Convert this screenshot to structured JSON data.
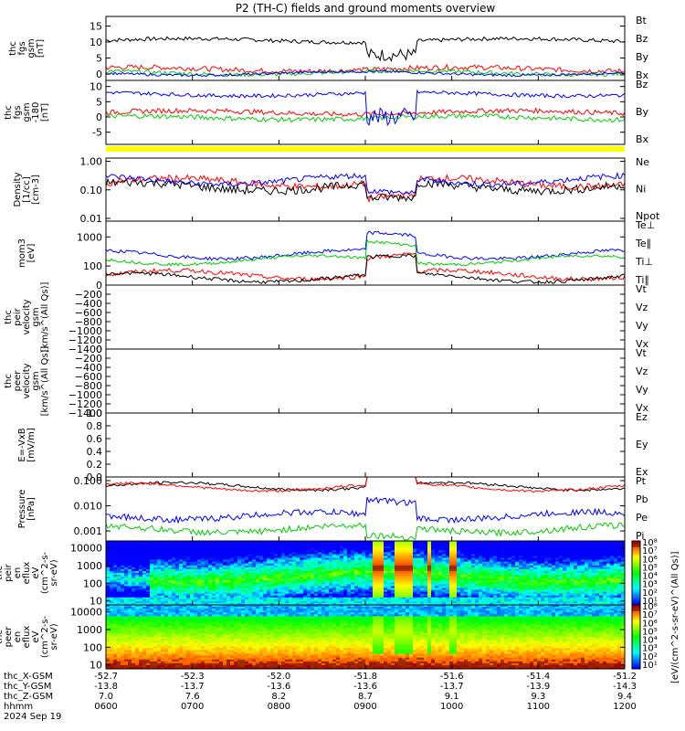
{
  "title": "P2 (TH-C) fields and ground moments overview",
  "colors": {
    "black": "#000000",
    "red": "#ff0000",
    "green": "#00cc00",
    "blue": "#0000ff",
    "yellow": "#ffff00"
  },
  "chart_data": [
    {
      "type": "line",
      "id": "p1",
      "ylabel": [
        "thc",
        "fgs",
        "gsm",
        "[nT]"
      ],
      "ylim": [
        -2,
        18
      ],
      "yticks": [
        0,
        5,
        10,
        15
      ],
      "log": false,
      "series": [
        {
          "name": "Bt",
          "color": "#000000",
          "base": 10.5,
          "amp": 0.6
        },
        {
          "name": "Bz",
          "color": "#ff0000",
          "base": 1.5,
          "amp": 0.8
        },
        {
          "name": "By",
          "color": "#00cc00",
          "base": 0.4,
          "amp": 0.6
        },
        {
          "name": "Bx",
          "color": "#0000ff",
          "base": 0.2,
          "amp": 0.4
        }
      ]
    },
    {
      "type": "line",
      "id": "p2",
      "ylabel": [
        "thc",
        "fgs",
        "gsm",
        "-180",
        "[nT]"
      ],
      "ylim": [
        -9,
        12
      ],
      "yticks": [
        -5,
        0,
        5,
        10
      ],
      "log": false,
      "series": [
        {
          "name": "Bz",
          "color": "#ff0000",
          "base": 1.5,
          "amp": 0.8
        },
        {
          "name": "By",
          "color": "#00cc00",
          "base": -0.3,
          "amp": 0.8
        },
        {
          "name": "Bx",
          "color": "#0000ff",
          "base": 7.5,
          "amp": 0.6
        }
      ]
    },
    {
      "type": "line",
      "id": "p3",
      "ylabel": [
        "Density",
        "[1/cc]",
        "[cm-3]"
      ],
      "ylim": [
        0.008,
        1.3
      ],
      "yticks": [
        1.0,
        0.1,
        0.01
      ],
      "yticklabels": [
        "1.00",
        "0.10",
        "0.01"
      ],
      "log": true,
      "series": [
        {
          "name": "Ne",
          "color": "#ff0000",
          "base": 0.18,
          "amp": 0.25
        },
        {
          "name": "Ni",
          "color": "#000000",
          "base": 0.13,
          "amp": 0.3
        },
        {
          "name": "Npot",
          "color": "#0000ff",
          "base": 0.22,
          "amp": 0.2
        }
      ]
    },
    {
      "type": "line",
      "id": "p4",
      "ylabel": [
        "mom3",
        "[eV]"
      ],
      "ylim": [
        22,
        3500
      ],
      "yticks": [
        1000,
        100
      ],
      "yticklabels": [
        "1000",
        "100"
      ],
      "log": true,
      "series": [
        {
          "name": "Te⊥",
          "color": "#ff0000",
          "base": 50,
          "amp": 0.15
        },
        {
          "name": "Te∥",
          "color": "#000000",
          "base": 40,
          "amp": 0.12
        },
        {
          "name": "Ti⊥",
          "color": "#0000ff",
          "base": 250,
          "amp": 0.12
        },
        {
          "name": "Ti∥",
          "color": "#00cc00",
          "base": 160,
          "amp": 0.1
        }
      ]
    },
    {
      "type": "line",
      "id": "p5",
      "ylabel": [
        "thc",
        "peir",
        "velocity",
        "gsm",
        "[km/s^(All Qs)]"
      ],
      "ylim": [
        -1400,
        0
      ],
      "yticks": [
        0,
        -200,
        -400,
        -600,
        -800,
        -1000,
        -1200,
        -1400
      ],
      "yticklabels": [
        "0",
        "−200",
        "−400",
        "−600",
        "−800",
        "−1000",
        "−1200",
        "−1400"
      ],
      "log": false,
      "series": [
        {
          "name": "Vt",
          "color": "#000000"
        },
        {
          "name": "Vz",
          "color": "#ff0000"
        },
        {
          "name": "Vy",
          "color": "#00cc00"
        },
        {
          "name": "Vx",
          "color": "#0000ff"
        }
      ]
    },
    {
      "type": "line",
      "id": "p6",
      "ylabel": [
        "thc",
        "peer",
        "velocity",
        "gsm",
        "[km/s^(All Qs)]"
      ],
      "ylim": [
        -1400,
        0
      ],
      "yticks": [
        0,
        -200,
        -400,
        -600,
        -800,
        -1000,
        -1200,
        -1400
      ],
      "yticklabels": [
        "0",
        "−200",
        "−400",
        "−600",
        "−800",
        "−1000",
        "−1200",
        "−1400"
      ],
      "log": false,
      "series": [
        {
          "name": "Vt",
          "color": "#000000"
        },
        {
          "name": "Vz",
          "color": "#ff0000"
        },
        {
          "name": "Vy",
          "color": "#00cc00"
        },
        {
          "name": "Vx",
          "color": "#0000ff"
        }
      ]
    },
    {
      "type": "line",
      "id": "p7",
      "ylabel": [
        "E=-VxB",
        "[mV/m]"
      ],
      "ylim": [
        0,
        1
      ],
      "yticks": [
        0,
        0.2,
        0.4,
        0.6,
        0.8,
        1.0
      ],
      "yticklabels": [
        "0.0",
        "0.2",
        "0.4",
        "0.6",
        "0.8",
        "1.0"
      ],
      "log": false,
      "series": [
        {
          "name": "Ez",
          "color": "#ff0000"
        },
        {
          "name": "Ey",
          "color": "#00cc00"
        },
        {
          "name": "Ex",
          "color": "#0000ff"
        }
      ]
    },
    {
      "type": "line",
      "id": "p8",
      "ylabel": [
        "Pressure",
        "[nPa]"
      ],
      "ylim": [
        0.0004,
        0.14
      ],
      "yticks": [
        0.1,
        0.01,
        0.001
      ],
      "yticklabels": [
        "0.100",
        "0.010",
        "0.001"
      ],
      "log": true,
      "series": [
        {
          "name": "Pt",
          "color": "#000000",
          "base": 0.06,
          "amp": 0.1
        },
        {
          "name": "Pb",
          "color": "#ff0000",
          "base": 0.055,
          "amp": 0.1
        },
        {
          "name": "Pe",
          "color": "#00cc00",
          "base": 0.0012,
          "amp": 0.25
        },
        {
          "name": "Pi",
          "color": "#0000ff",
          "base": 0.004,
          "amp": 0.25
        }
      ]
    },
    {
      "type": "heatmap",
      "id": "s1",
      "ylabel": [
        "thc",
        "peir",
        "en",
        "eflux",
        "eV",
        "(cm^2-s-",
        "sr-eV)"
      ],
      "ylim": [
        6,
        25000
      ],
      "yticks": [
        10000,
        1000,
        100,
        10
      ],
      "yticklabels": [
        "10000",
        "1000",
        "100",
        "10"
      ],
      "log": true
    },
    {
      "type": "heatmap",
      "id": "s2",
      "ylabel": [
        "thc",
        "peer",
        "en",
        "eflux",
        "eV",
        "(cm^2-s-",
        "sr-eV)"
      ],
      "ylim": [
        6,
        25000
      ],
      "yticks": [
        10000,
        1000,
        100,
        10
      ],
      "yticklabels": [
        "10000",
        "1000",
        "100",
        "10"
      ],
      "log": true
    }
  ],
  "colorbar": {
    "label": "[eV/(cm^2-s-sr-eV)^(All Qs)]",
    "ticks_upper": [
      "10⁸",
      "10⁷",
      "10⁶",
      "10⁵",
      "10⁴",
      "10³",
      "10²",
      "10¹"
    ],
    "ticks_lower": [
      "10⁸",
      "10⁷",
      "10⁶",
      "10⁵",
      "10⁴",
      "10³",
      "10²",
      "10¹"
    ]
  },
  "x_axis": {
    "rows": [
      {
        "label": "thc_X-GSM",
        "values": [
          "-52.7",
          "-52.3",
          "-52.0",
          "-51.8",
          "-51.6",
          "-51.4",
          "-51.2"
        ]
      },
      {
        "label": "thc_Y-GSM",
        "values": [
          "-13.8",
          "-13.7",
          "-13.6",
          "-13.6",
          "-13.7",
          "-13.9",
          "-14.3"
        ]
      },
      {
        "label": "thc_Z-GSM",
        "values": [
          "7.0",
          "7.6",
          "8.2",
          "8.7",
          "9.1",
          "9.3",
          "9.4"
        ]
      },
      {
        "label": "hhmm",
        "values": [
          "0600",
          "0700",
          "0800",
          "0900",
          "1000",
          "1100",
          "1200"
        ]
      }
    ],
    "date": "2024 Sep 19"
  }
}
